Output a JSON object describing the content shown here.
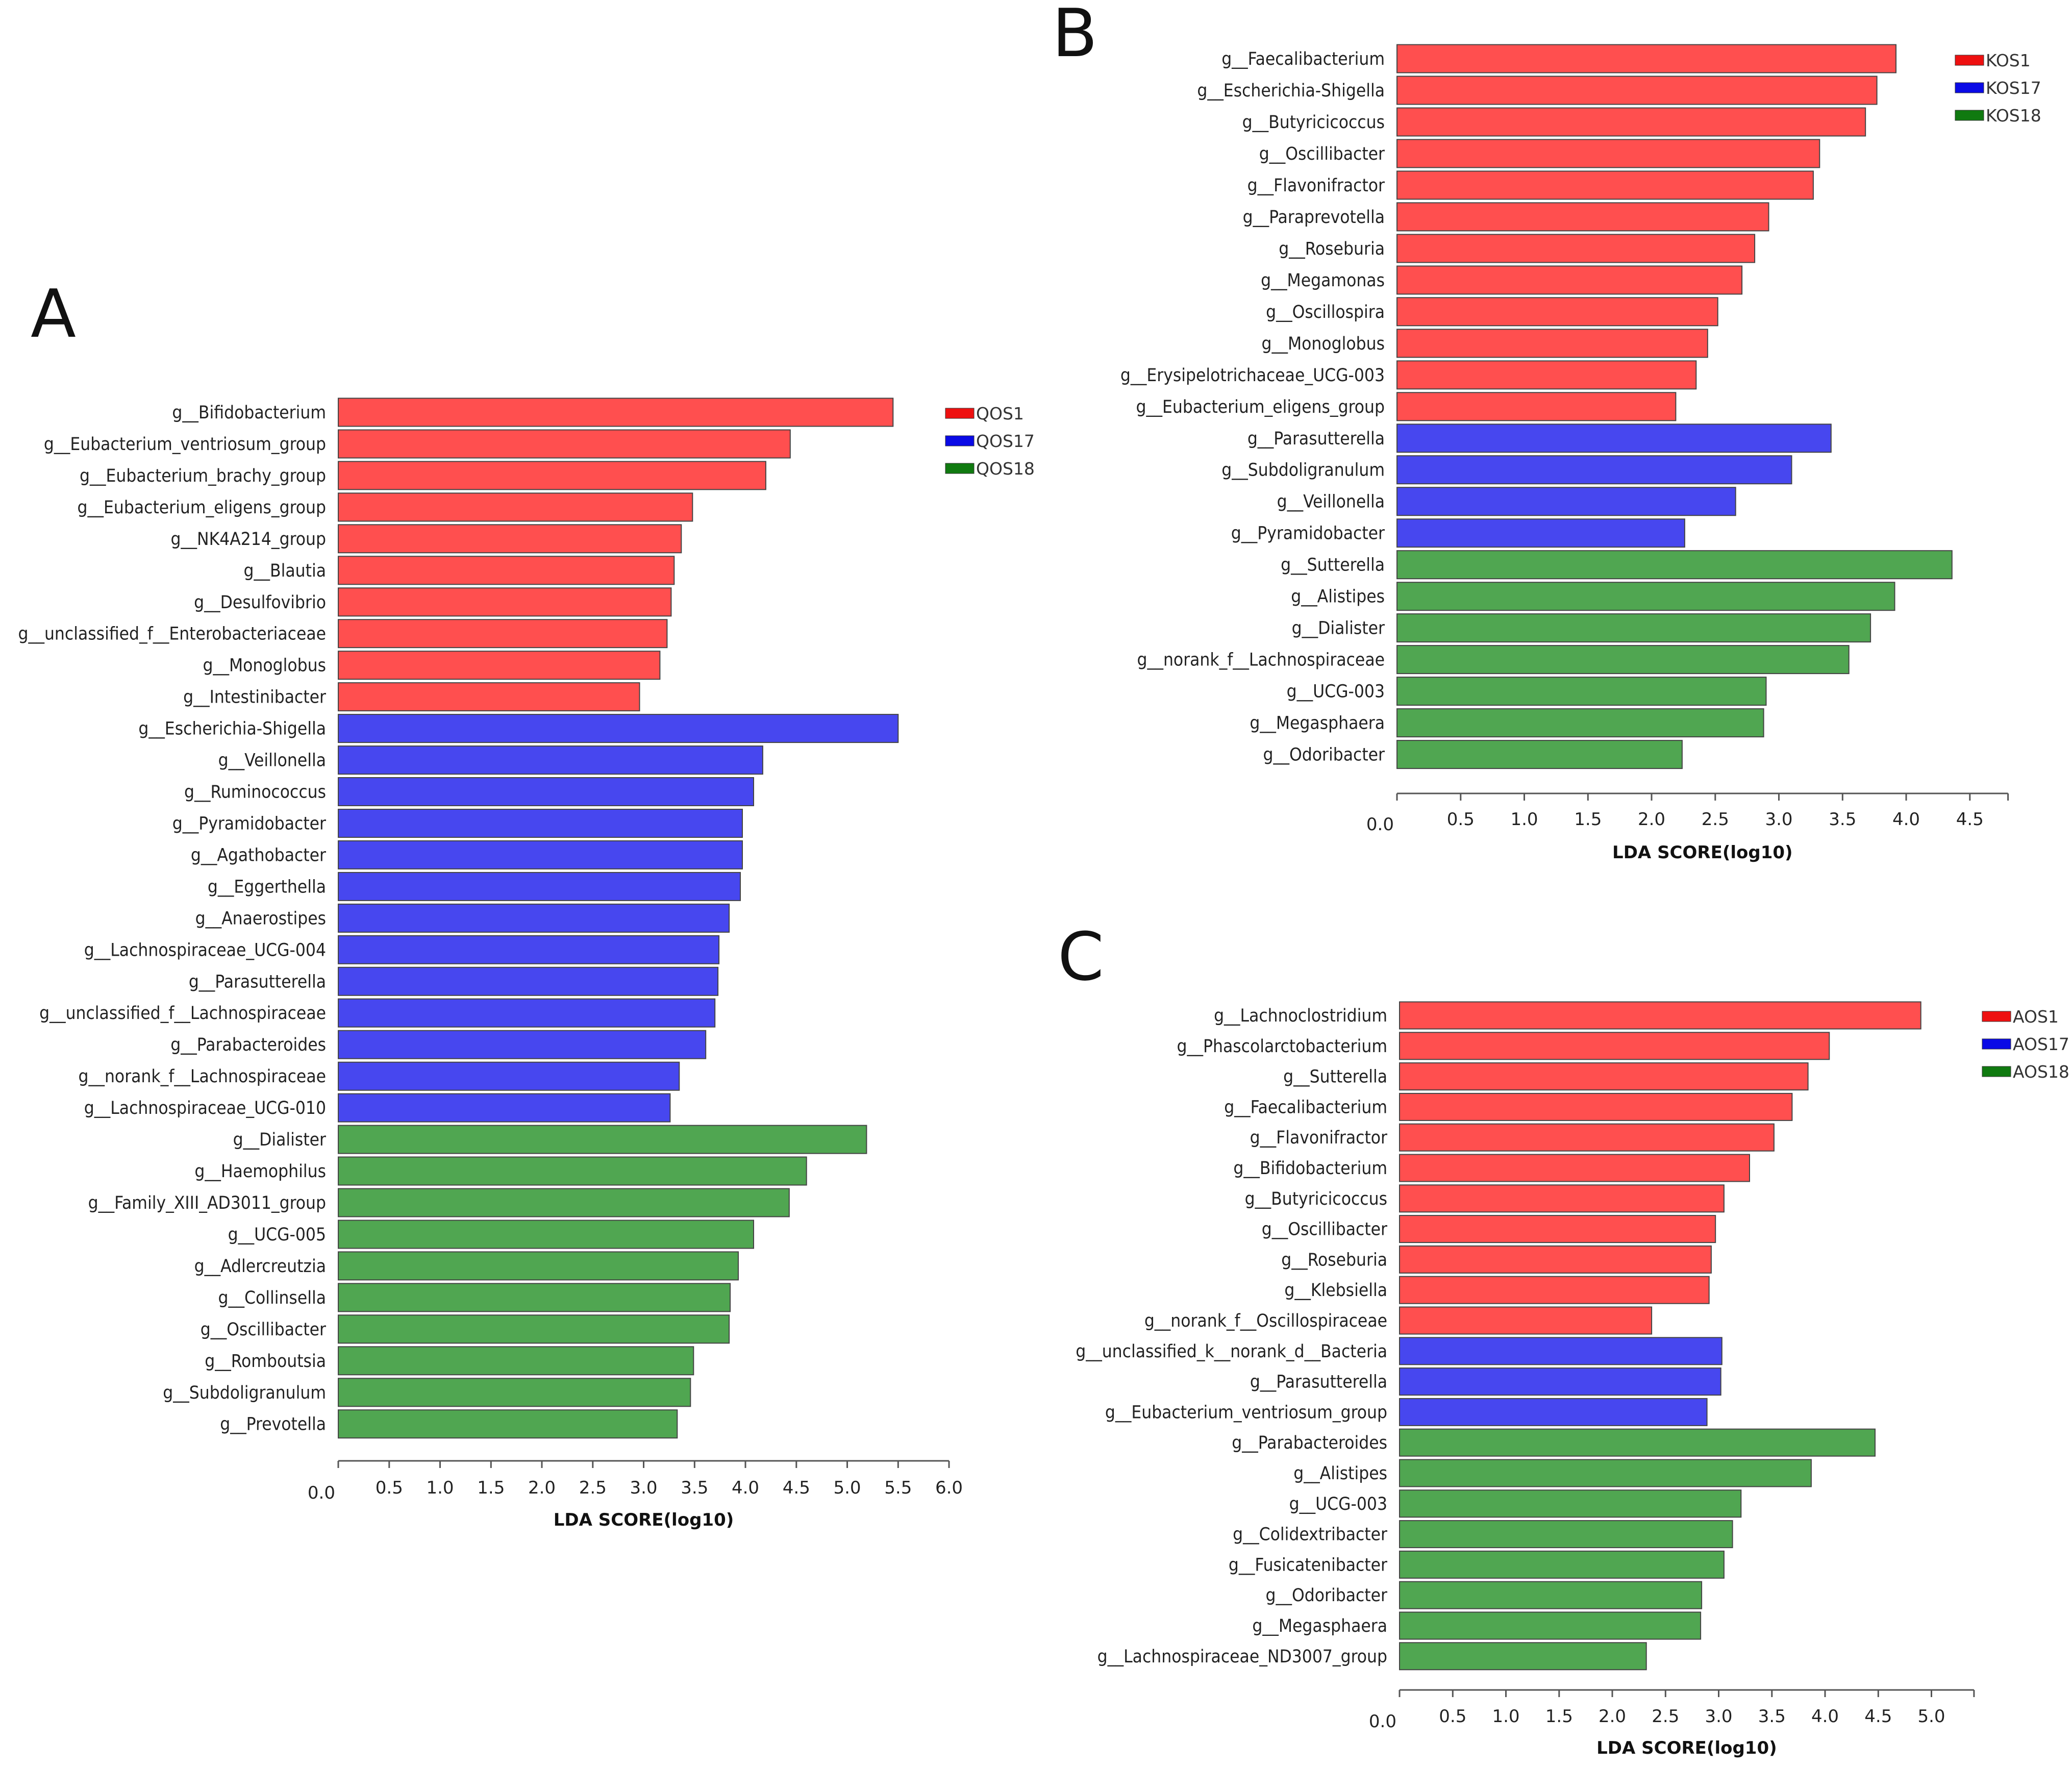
{
  "colors": {
    "group1": "#ff4f4f",
    "group2": "#4747ef",
    "group3": "#50a651",
    "legend1": "#ee1010",
    "legend2": "#0a0ae6",
    "legend3": "#107a10"
  },
  "chart_data": [
    {
      "panel": "A",
      "type": "bar",
      "orientation": "horizontal",
      "xlabel": "LDA SCORE(log10)",
      "xlim": [
        0,
        6.0
      ],
      "ticks": [
        "0.0",
        "0.5",
        "1.0",
        "1.5",
        "2.0",
        "2.5",
        "3.0",
        "3.5",
        "4.0",
        "4.5",
        "5.0",
        "5.5",
        "6.0"
      ],
      "legend": [
        "QOS1",
        "QOS17",
        "QOS18"
      ],
      "bars": [
        {
          "label": "g__Bifidobacterium",
          "value": 5.45,
          "group": 0
        },
        {
          "label": "g__Eubacterium_ventriosum_group",
          "value": 4.44,
          "group": 0
        },
        {
          "label": "g__Eubacterium_brachy_group",
          "value": 4.2,
          "group": 0
        },
        {
          "label": "g__Eubacterium_eligens_group",
          "value": 3.48,
          "group": 0
        },
        {
          "label": "g__NK4A214_group",
          "value": 3.37,
          "group": 0
        },
        {
          "label": "g__Blautia",
          "value": 3.3,
          "group": 0
        },
        {
          "label": "g__Desulfovibrio",
          "value": 3.27,
          "group": 0
        },
        {
          "label": "g__unclassified_f__Enterobacteriaceae",
          "value": 3.23,
          "group": 0
        },
        {
          "label": "g__Monoglobus",
          "value": 3.16,
          "group": 0
        },
        {
          "label": "g__Intestinibacter",
          "value": 2.96,
          "group": 0
        },
        {
          "label": "g__Escherichia-Shigella",
          "value": 5.5,
          "group": 1
        },
        {
          "label": "g__Veillonella",
          "value": 4.17,
          "group": 1
        },
        {
          "label": "g__Ruminococcus",
          "value": 4.08,
          "group": 1
        },
        {
          "label": "g__Pyramidobacter",
          "value": 3.97,
          "group": 1
        },
        {
          "label": "g__Agathobacter",
          "value": 3.97,
          "group": 1
        },
        {
          "label": "g__Eggerthella",
          "value": 3.95,
          "group": 1
        },
        {
          "label": "g__Anaerostipes",
          "value": 3.84,
          "group": 1
        },
        {
          "label": "g__Lachnospiraceae_UCG-004",
          "value": 3.74,
          "group": 1
        },
        {
          "label": "g__Parasutterella",
          "value": 3.73,
          "group": 1
        },
        {
          "label": "g__unclassified_f__Lachnospiraceae",
          "value": 3.7,
          "group": 1
        },
        {
          "label": "g__Parabacteroides",
          "value": 3.61,
          "group": 1
        },
        {
          "label": "g__norank_f__Lachnospiraceae",
          "value": 3.35,
          "group": 1
        },
        {
          "label": "g__Lachnospiraceae_UCG-010",
          "value": 3.26,
          "group": 1
        },
        {
          "label": "g__Dialister",
          "value": 5.19,
          "group": 2
        },
        {
          "label": "g__Haemophilus",
          "value": 4.6,
          "group": 2
        },
        {
          "label": "g__Family_XIII_AD3011_group",
          "value": 4.43,
          "group": 2
        },
        {
          "label": "g__UCG-005",
          "value": 4.08,
          "group": 2
        },
        {
          "label": "g__Adlercreutzia",
          "value": 3.93,
          "group": 2
        },
        {
          "label": "g__Collinsella",
          "value": 3.85,
          "group": 2
        },
        {
          "label": "g__Oscillibacter",
          "value": 3.84,
          "group": 2
        },
        {
          "label": "g__Romboutsia",
          "value": 3.49,
          "group": 2
        },
        {
          "label": "g__Subdoligranulum",
          "value": 3.46,
          "group": 2
        },
        {
          "label": "g__Prevotella",
          "value": 3.33,
          "group": 2
        }
      ]
    },
    {
      "panel": "B",
      "type": "bar",
      "orientation": "horizontal",
      "xlabel": "LDA SCORE(log10)",
      "xlim": [
        0,
        4.8
      ],
      "ticks": [
        "0.0",
        "0.5",
        "1.0",
        "1.5",
        "2.0",
        "2.5",
        "3.0",
        "3.5",
        "4.0",
        "4.5"
      ],
      "legend": [
        "KOS1",
        "KOS17",
        "KOS18"
      ],
      "bars": [
        {
          "label": "g__Faecalibacterium",
          "value": 3.92,
          "group": 0
        },
        {
          "label": "g__Escherichia-Shigella",
          "value": 3.77,
          "group": 0
        },
        {
          "label": "g__Butyricicoccus",
          "value": 3.68,
          "group": 0
        },
        {
          "label": "g__Oscillibacter",
          "value": 3.32,
          "group": 0
        },
        {
          "label": "g__Flavonifractor",
          "value": 3.27,
          "group": 0
        },
        {
          "label": "g__Paraprevotella",
          "value": 2.92,
          "group": 0
        },
        {
          "label": "g__Roseburia",
          "value": 2.81,
          "group": 0
        },
        {
          "label": "g__Megamonas",
          "value": 2.71,
          "group": 0
        },
        {
          "label": "g__Oscillospira",
          "value": 2.52,
          "group": 0
        },
        {
          "label": "g__Monoglobus",
          "value": 2.44,
          "group": 0
        },
        {
          "label": "g__Erysipelotrichaceae_UCG-003",
          "value": 2.35,
          "group": 0
        },
        {
          "label": "g__Eubacterium_eligens_group",
          "value": 2.19,
          "group": 0
        },
        {
          "label": "g__Parasutterella",
          "value": 3.41,
          "group": 1
        },
        {
          "label": "g__Subdoligranulum",
          "value": 3.1,
          "group": 1
        },
        {
          "label": "g__Veillonella",
          "value": 2.66,
          "group": 1
        },
        {
          "label": "g__Pyramidobacter",
          "value": 2.26,
          "group": 1
        },
        {
          "label": "g__Sutterella",
          "value": 4.36,
          "group": 2
        },
        {
          "label": "g__Alistipes",
          "value": 3.91,
          "group": 2
        },
        {
          "label": "g__Dialister",
          "value": 3.72,
          "group": 2
        },
        {
          "label": "g__norank_f__Lachnospiraceae",
          "value": 3.55,
          "group": 2
        },
        {
          "label": "g__UCG-003",
          "value": 2.9,
          "group": 2
        },
        {
          "label": "g__Megasphaera",
          "value": 2.88,
          "group": 2
        },
        {
          "label": "g__Odoribacter",
          "value": 2.24,
          "group": 2
        }
      ]
    },
    {
      "panel": "C",
      "type": "bar",
      "orientation": "horizontal",
      "xlabel": "LDA SCORE(log10)",
      "xlim": [
        0,
        5.4
      ],
      "ticks": [
        "0.0",
        "0.5",
        "1.0",
        "1.5",
        "2.0",
        "2.5",
        "3.0",
        "3.5",
        "4.0",
        "4.5",
        "5.0"
      ],
      "legend": [
        "AOS1",
        "AOS17",
        "AOS18"
      ],
      "bars": [
        {
          "label": "g__Lachnoclostridium",
          "value": 4.9,
          "group": 0
        },
        {
          "label": "g__Phascolarctobacterium",
          "value": 4.04,
          "group": 0
        },
        {
          "label": "g__Sutterella",
          "value": 3.84,
          "group": 0
        },
        {
          "label": "g__Faecalibacterium",
          "value": 3.69,
          "group": 0
        },
        {
          "label": "g__Flavonifractor",
          "value": 3.52,
          "group": 0
        },
        {
          "label": "g__Bifidobacterium",
          "value": 3.29,
          "group": 0
        },
        {
          "label": "g__Butyricicoccus",
          "value": 3.05,
          "group": 0
        },
        {
          "label": "g__Oscillibacter",
          "value": 2.97,
          "group": 0
        },
        {
          "label": "g__Roseburia",
          "value": 2.93,
          "group": 0
        },
        {
          "label": "g__Klebsiella",
          "value": 2.91,
          "group": 0
        },
        {
          "label": "g__norank_f__Oscillospiraceae",
          "value": 2.37,
          "group": 0
        },
        {
          "label": "g__unclassified_k__norank_d__Bacteria",
          "value": 3.03,
          "group": 1
        },
        {
          "label": "g__Parasutterella",
          "value": 3.02,
          "group": 1
        },
        {
          "label": "g__Eubacterium_ventriosum_group",
          "value": 2.89,
          "group": 1
        },
        {
          "label": "g__Parabacteroides",
          "value": 4.47,
          "group": 2
        },
        {
          "label": "g__Alistipes",
          "value": 3.87,
          "group": 2
        },
        {
          "label": "g__UCG-003",
          "value": 3.21,
          "group": 2
        },
        {
          "label": "g__Colidextribacter",
          "value": 3.13,
          "group": 2
        },
        {
          "label": "g__Fusicatenibacter",
          "value": 3.05,
          "group": 2
        },
        {
          "label": "g__Odoribacter",
          "value": 2.84,
          "group": 2
        },
        {
          "label": "g__Megasphaera",
          "value": 2.83,
          "group": 2
        },
        {
          "label": "g__Lachnospiraceae_ND3007_group",
          "value": 2.32,
          "group": 2
        }
      ]
    }
  ]
}
